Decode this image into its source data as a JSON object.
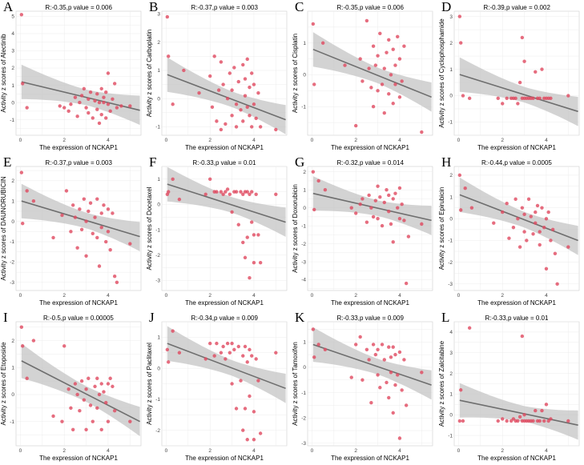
{
  "x_label": "The expression of NCKAP1",
  "chart_data": [
    {
      "type": "scatter",
      "letter": "A",
      "title": "R:-0.35,p value = 0.006",
      "ylabel": "Activity z scores of Alectinib",
      "xlim": [
        -0.2,
        5.5
      ],
      "ylim": [
        -1.9,
        5.3
      ],
      "xticks": [
        0,
        2,
        4
      ],
      "yticks": [
        -1,
        0,
        1,
        2,
        3,
        4,
        5
      ],
      "fit": {
        "y0": 1.2,
        "y1": -0.45
      },
      "x": [
        0.05,
        0.1,
        0.3,
        1.8,
        2.0,
        2.2,
        2.3,
        2.5,
        2.6,
        2.7,
        2.8,
        2.9,
        3.0,
        3.1,
        3.1,
        3.2,
        3.3,
        3.4,
        3.5,
        3.5,
        3.6,
        3.6,
        3.7,
        3.7,
        3.8,
        3.8,
        3.9,
        3.9,
        4.0,
        4.0,
        4.1,
        4.2,
        4.3,
        4.4,
        4.6,
        5.0
      ],
      "y": [
        5.1,
        1.1,
        -0.3,
        -0.2,
        -0.3,
        -0.5,
        -0.1,
        0.3,
        -0.8,
        0.0,
        0.4,
        0.8,
        -0.3,
        0.2,
        -0.6,
        0.6,
        -0.9,
        0.1,
        0.5,
        -0.4,
        0.0,
        -1.2,
        0.8,
        -0.7,
        0.3,
        0.0,
        -0.9,
        0.6,
        -0.1,
        1.7,
        -0.5,
        0.2,
        1.1,
        -0.3,
        -0.2,
        -0.2
      ]
    },
    {
      "type": "scatter",
      "letter": "B",
      "title": "R:-0.37,p value = 0.003",
      "ylabel": "Activity z scores of Carboplatin",
      "xlim": [
        -0.2,
        5.5
      ],
      "ylim": [
        -1.3,
        3.1
      ],
      "xticks": [
        0,
        2,
        4
      ],
      "yticks": [
        -1,
        0,
        1,
        2,
        3
      ],
      "fit": {
        "y0": 0.85,
        "y1": -0.75
      },
      "x": [
        0.05,
        0.1,
        0.3,
        0.8,
        1.5,
        2.0,
        2.1,
        2.2,
        2.3,
        2.4,
        2.5,
        2.5,
        2.6,
        2.7,
        2.8,
        2.9,
        3.0,
        3.0,
        3.1,
        3.2,
        3.2,
        3.3,
        3.4,
        3.5,
        3.5,
        3.6,
        3.6,
        3.7,
        3.7,
        3.8,
        3.8,
        3.9,
        3.9,
        4.0,
        4.0,
        4.1,
        4.2,
        4.3,
        5.0
      ],
      "y": [
        2.9,
        1.5,
        -0.2,
        1.0,
        0.2,
        0.8,
        -0.3,
        1.5,
        -0.8,
        0.3,
        1.3,
        -1.1,
        0.5,
        -0.9,
        0.0,
        0.9,
        -0.6,
        0.3,
        1.1,
        -0.2,
        -1.0,
        0.6,
        -0.4,
        1.2,
        -0.8,
        0.1,
        0.7,
        -0.3,
        1.4,
        -0.6,
        0.4,
        -1.0,
        0.9,
        -0.2,
        0.5,
        -0.7,
        0.2,
        -1.0,
        -1.1
      ]
    },
    {
      "type": "scatter",
      "letter": "C",
      "title": "R:-0.35,p value = 0.006",
      "ylabel": "Activity z scores of Cisplatin",
      "xlim": [
        -0.2,
        5.5
      ],
      "ylim": [
        -1.9,
        2.0
      ],
      "xticks": [
        0,
        2,
        4
      ],
      "yticks": [
        -1,
        0,
        1
      ],
      "fit": {
        "y0": 0.8,
        "y1": -0.7
      },
      "x": [
        0.05,
        0.1,
        0.5,
        1.5,
        2.0,
        2.2,
        2.3,
        2.5,
        2.6,
        2.7,
        2.8,
        2.8,
        2.9,
        3.0,
        3.0,
        3.1,
        3.2,
        3.3,
        3.3,
        3.4,
        3.5,
        3.5,
        3.6,
        3.7,
        3.7,
        3.8,
        3.8,
        3.9,
        4.0,
        4.0,
        4.1,
        4.2,
        5.0
      ],
      "y": [
        1.6,
        -0.3,
        1.0,
        0.3,
        -1.6,
        0.5,
        -0.2,
        1.7,
        0.2,
        -0.4,
        0.9,
        -1.0,
        0.3,
        -0.5,
        0.6,
        1.3,
        -0.3,
        0.2,
        -1.2,
        0.7,
        -0.6,
        1.1,
        0.0,
        -0.9,
        0.8,
        0.3,
        -0.3,
        1.2,
        -0.7,
        0.5,
        -0.2,
        0.9,
        -1.8
      ]
    },
    {
      "type": "scatter",
      "letter": "D",
      "title": "R:-0.39,p value = 0.002",
      "ylabel": "Activity z scores of Cyclophosphamide",
      "xlim": [
        -0.2,
        5.5
      ],
      "ylim": [
        -1.5,
        3.2
      ],
      "xticks": [
        0,
        2,
        4
      ],
      "yticks": [
        -1,
        0,
        1,
        2,
        3
      ],
      "fit": {
        "y0": 0.8,
        "y1": -0.6
      },
      "x": [
        0.05,
        0.1,
        0.2,
        0.5,
        1.8,
        2.0,
        2.2,
        2.4,
        2.5,
        2.6,
        2.7,
        2.8,
        2.9,
        2.9,
        3.0,
        3.0,
        3.1,
        3.2,
        3.3,
        3.4,
        3.5,
        3.6,
        3.7,
        3.8,
        3.9,
        4.0,
        4.1,
        4.2,
        5.0
      ],
      "y": [
        3.0,
        2.0,
        0.0,
        -0.1,
        -0.1,
        -0.3,
        -0.1,
        -0.1,
        -0.1,
        -0.1,
        -0.3,
        0.5,
        2.2,
        -0.1,
        -0.1,
        1.3,
        -0.1,
        -0.1,
        -0.1,
        -0.1,
        0.9,
        -0.1,
        -0.1,
        1.0,
        -0.1,
        -0.1,
        -0.1,
        -0.1,
        0.0
      ]
    },
    {
      "type": "scatter",
      "letter": "E",
      "title": "R:-0.37,p value = 0.003",
      "ylabel": "Activity z scores of DAUNORUBICIN",
      "xlim": [
        -0.2,
        5.5
      ],
      "ylim": [
        -3.4,
        2.7
      ],
      "xticks": [
        0,
        2,
        4
      ],
      "yticks": [
        -3,
        -2,
        -1,
        0,
        1,
        2
      ],
      "fit": {
        "y0": 1.0,
        "y1": -0.75
      },
      "x": [
        0.05,
        0.1,
        0.3,
        0.6,
        1.5,
        1.9,
        2.1,
        2.3,
        2.4,
        2.5,
        2.6,
        2.7,
        2.8,
        2.9,
        3.0,
        3.0,
        3.1,
        3.2,
        3.3,
        3.4,
        3.5,
        3.5,
        3.6,
        3.7,
        3.7,
        3.8,
        3.9,
        4.0,
        4.0,
        4.1,
        4.2,
        4.3,
        4.4,
        5.0
      ],
      "y": [
        2.4,
        -0.1,
        1.5,
        1.0,
        -0.8,
        0.3,
        1.5,
        -0.5,
        0.8,
        0.2,
        -1.3,
        0.6,
        -0.4,
        1.1,
        0.0,
        -1.7,
        0.5,
        0.9,
        -0.6,
        0.2,
        1.1,
        -0.8,
        -2.2,
        0.4,
        -0.3,
        0.8,
        -1.0,
        0.6,
        -0.5,
        -1.4,
        0.4,
        -2.7,
        -3.0,
        -1.1
      ]
    },
    {
      "type": "scatter",
      "letter": "F",
      "title": "R:-0.33,p value = 0.01",
      "ylabel": "Activity z scores of Docetaxel",
      "xlim": [
        -0.2,
        5.5
      ],
      "ylim": [
        -3.4,
        1.5
      ],
      "xticks": [
        0,
        2,
        4
      ],
      "yticks": [
        -3,
        -2,
        -1,
        0,
        1
      ],
      "fit": {
        "y0": 0.8,
        "y1": -0.7
      },
      "x": [
        0.05,
        0.1,
        0.3,
        0.6,
        1.8,
        2.0,
        2.2,
        2.3,
        2.5,
        2.6,
        2.7,
        2.8,
        2.9,
        3.0,
        3.1,
        3.2,
        3.3,
        3.4,
        3.5,
        3.5,
        3.6,
        3.6,
        3.7,
        3.7,
        3.8,
        3.8,
        3.9,
        3.9,
        4.0,
        4.0,
        4.1,
        4.2,
        4.3,
        5.0
      ],
      "y": [
        0.4,
        0.5,
        1.0,
        0.2,
        0.4,
        1.0,
        0.5,
        0.5,
        0.5,
        0.4,
        0.5,
        0.6,
        0.4,
        -0.3,
        0.5,
        0.5,
        -0.8,
        0.5,
        0.4,
        -1.5,
        -2.1,
        0.5,
        0.5,
        -1.3,
        -2.9,
        0.4,
        -0.7,
        0.5,
        -1.2,
        -2.3,
        0.4,
        -1.2,
        -2.3,
        0.4
      ]
    },
    {
      "type": "scatter",
      "letter": "G",
      "title": "R:-0.32,p value = 0.014",
      "ylabel": "Activity z scores of Doxorubicin",
      "xlim": [
        -0.2,
        5.5
      ],
      "ylim": [
        -4.6,
        2.3
      ],
      "xticks": [
        0,
        2,
        4
      ],
      "yticks": [
        -4,
        -3,
        -2,
        -1,
        0,
        1,
        2
      ],
      "fit": {
        "y0": 0.8,
        "y1": -0.7
      },
      "x": [
        0.05,
        0.1,
        0.3,
        0.6,
        1.8,
        2.0,
        2.2,
        2.3,
        2.5,
        2.6,
        2.7,
        2.8,
        2.9,
        3.0,
        3.0,
        3.1,
        3.2,
        3.3,
        3.4,
        3.5,
        3.5,
        3.6,
        3.7,
        3.7,
        3.8,
        3.9,
        4.0,
        4.0,
        4.1,
        4.2,
        4.3,
        4.4,
        5.0
      ],
      "y": [
        2.0,
        -0.1,
        1.5,
        1.0,
        0.0,
        -0.3,
        0.2,
        0.5,
        -0.8,
        0.7,
        0.0,
        -0.5,
        0.4,
        1.2,
        -0.6,
        0.6,
        -1.0,
        0.3,
        1.0,
        -0.2,
        0.7,
        -0.9,
        0.5,
        -1.9,
        0.8,
        0.0,
        -0.6,
        1.1,
        0.2,
        -0.7,
        -4.2,
        -1.6,
        -0.9
      ]
    },
    {
      "type": "scatter",
      "letter": "H",
      "title": "R:-0.44,p value = 0.0005",
      "ylabel": "Activity z scores of Epirubicin",
      "xlim": [
        -0.2,
        5.5
      ],
      "ylim": [
        -3.3,
        2.4
      ],
      "xticks": [
        0,
        2,
        4
      ],
      "yticks": [
        -3,
        -2,
        -1,
        0,
        1,
        2
      ],
      "fit": {
        "y0": 1.1,
        "y1": -1.0
      },
      "x": [
        0.05,
        0.1,
        0.3,
        0.6,
        1.6,
        2.0,
        2.2,
        2.3,
        2.5,
        2.6,
        2.7,
        2.8,
        2.9,
        3.0,
        3.0,
        3.1,
        3.2,
        3.3,
        3.4,
        3.5,
        3.5,
        3.6,
        3.7,
        3.7,
        3.8,
        3.9,
        4.0,
        4.0,
        4.1,
        4.2,
        4.3,
        4.4,
        4.5,
        5.0
      ],
      "y": [
        2.0,
        0.4,
        1.4,
        0.5,
        -0.2,
        0.3,
        0.7,
        -0.9,
        -0.4,
        0.9,
        0.0,
        -1.3,
        0.5,
        0.2,
        -0.6,
        -1.0,
        0.9,
        0.1,
        -0.7,
        0.3,
        -0.2,
        0.6,
        -0.6,
        -1.2,
        0.5,
        -0.4,
        0.0,
        -2.3,
        0.3,
        -1.0,
        -0.5,
        -1.6,
        -3.0,
        -1.3
      ]
    },
    {
      "type": "scatter",
      "letter": "I",
      "title": "R:-0.5,p value = 0.00005",
      "ylabel": "Activity z scores of Etoposide",
      "xlim": [
        -0.2,
        5.5
      ],
      "ylim": [
        -1.9,
        2.7
      ],
      "xticks": [
        0,
        2,
        4
      ],
      "yticks": [
        -1,
        0,
        1,
        2
      ],
      "fit": {
        "y0": 1.25,
        "y1": -1.0
      },
      "x": [
        0.05,
        0.1,
        0.3,
        0.6,
        1.5,
        1.9,
        2.0,
        2.2,
        2.3,
        2.4,
        2.5,
        2.6,
        2.7,
        2.8,
        2.9,
        3.0,
        3.0,
        3.1,
        3.2,
        3.3,
        3.4,
        3.5,
        3.5,
        3.6,
        3.7,
        3.7,
        3.8,
        3.9,
        4.0,
        4.0,
        4.1,
        4.2,
        4.3,
        5.0
      ],
      "y": [
        2.5,
        1.8,
        0.6,
        2.0,
        -0.8,
        -1.0,
        1.8,
        0.2,
        -0.5,
        -1.3,
        0.4,
        0.0,
        -0.6,
        0.5,
        -0.2,
        0.2,
        -1.3,
        0.6,
        -0.4,
        -1.0,
        0.3,
        0.6,
        -0.5,
        0.0,
        0.4,
        -1.3,
        0.1,
        -0.3,
        0.4,
        -1.0,
        0.6,
        0.3,
        -0.6,
        -1.0
      ]
    },
    {
      "type": "scatter",
      "letter": "J",
      "title": "R:-0.34,p value = 0.009",
      "ylabel": "Activity z scores of Paclitaxel",
      "xlim": [
        -0.2,
        5.5
      ],
      "ylim": [
        -2.5,
        1.5
      ],
      "xticks": [
        0,
        2,
        4
      ],
      "yticks": [
        -2,
        -1,
        0,
        1
      ],
      "fit": {
        "y0": 0.8,
        "y1": -0.65
      },
      "x": [
        0.05,
        0.1,
        0.3,
        0.6,
        1.8,
        2.0,
        2.2,
        2.3,
        2.5,
        2.6,
        2.7,
        2.8,
        2.9,
        3.0,
        3.0,
        3.1,
        3.2,
        3.3,
        3.4,
        3.5,
        3.5,
        3.6,
        3.6,
        3.7,
        3.7,
        3.8,
        3.8,
        3.9,
        4.0,
        4.0,
        4.1,
        4.2,
        4.3,
        5.0
      ],
      "y": [
        0.6,
        0.2,
        1.2,
        0.5,
        0.3,
        0.8,
        0.4,
        0.8,
        0.5,
        0.7,
        0.3,
        0.8,
        0.5,
        -0.5,
        0.8,
        0.6,
        -1.3,
        0.7,
        -0.4,
        0.4,
        -2.0,
        0.7,
        -1.3,
        0.2,
        -2.3,
        0.6,
        -0.9,
        0.4,
        -1.4,
        -2.3,
        0.3,
        -0.4,
        -2.1,
        0.5
      ]
    },
    {
      "type": "scatter",
      "letter": "K",
      "title": "R:-0.33,p value = 0.009",
      "ylabel": "Activity z scores of Tamoxifen",
      "xlim": [
        -0.2,
        5.5
      ],
      "ylim": [
        -3.1,
        1.8
      ],
      "xticks": [
        0,
        2,
        4
      ],
      "yticks": [
        -3,
        -2,
        -1,
        0,
        1
      ],
      "fit": {
        "y0": 0.9,
        "y1": -0.7
      },
      "x": [
        0.05,
        0.1,
        0.3,
        0.6,
        1.8,
        2.0,
        2.2,
        2.3,
        2.5,
        2.6,
        2.7,
        2.8,
        2.9,
        3.0,
        3.0,
        3.1,
        3.2,
        3.3,
        3.4,
        3.5,
        3.5,
        3.6,
        3.6,
        3.7,
        3.7,
        3.8,
        3.8,
        3.9,
        4.0,
        4.0,
        4.1,
        4.2,
        4.3,
        5.0
      ],
      "y": [
        1.5,
        0.4,
        0.9,
        0.7,
        -0.4,
        0.9,
        1.2,
        -0.5,
        0.7,
        0.3,
        -1.4,
        0.9,
        0.5,
        -0.3,
        0.7,
        -0.8,
        0.9,
        0.3,
        -0.6,
        0.8,
        -1.2,
        0.4,
        -0.2,
        0.8,
        -1.8,
        0.5,
        -0.7,
        -0.3,
        0.6,
        -2.8,
        -0.9,
        0.3,
        -1.5,
        -0.2
      ]
    },
    {
      "type": "scatter",
      "letter": "L",
      "title": "R:-0.33,p value = 0.01",
      "ylabel": "Activity z scores of Zalcitabine",
      "xlim": [
        -0.2,
        5.5
      ],
      "ylim": [
        -1.5,
        4.5
      ],
      "xticks": [
        0,
        2,
        4
      ],
      "yticks": [
        -1,
        0,
        1,
        2,
        3,
        4
      ],
      "fit": {
        "y0": 0.7,
        "y1": -0.5
      },
      "x": [
        0.05,
        0.1,
        0.2,
        0.5,
        1.8,
        2.0,
        2.2,
        2.4,
        2.5,
        2.6,
        2.7,
        2.8,
        2.9,
        2.9,
        3.0,
        3.0,
        3.1,
        3.2,
        3.3,
        3.4,
        3.5,
        3.6,
        3.7,
        3.8,
        3.9,
        4.0,
        4.1,
        4.2,
        5.0
      ],
      "y": [
        -0.3,
        1.2,
        -0.3,
        4.2,
        -0.3,
        -0.2,
        -0.3,
        -0.3,
        -0.2,
        -0.3,
        -0.3,
        -0.1,
        3.8,
        -0.3,
        -0.3,
        0.0,
        -0.3,
        -0.3,
        -0.3,
        -0.3,
        0.2,
        -0.3,
        -0.3,
        0.2,
        -0.3,
        0.5,
        -0.3,
        -0.2,
        -0.3
      ]
    }
  ]
}
